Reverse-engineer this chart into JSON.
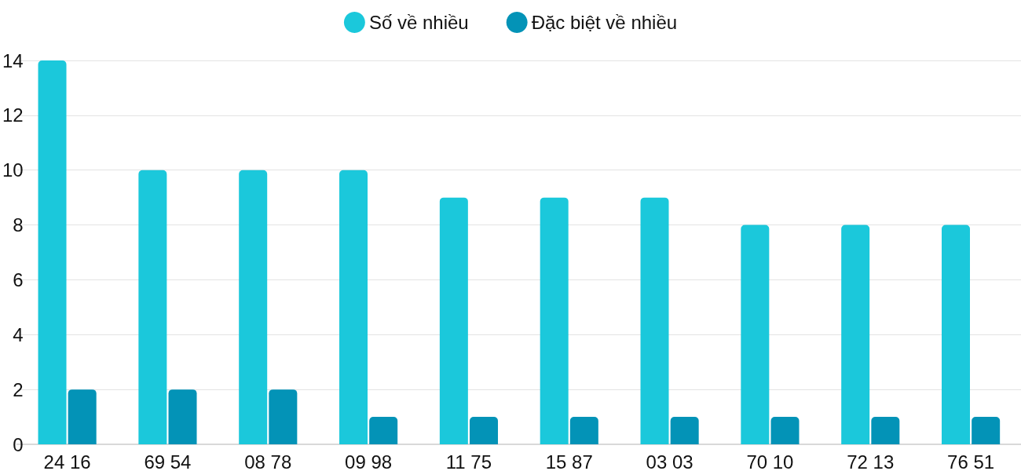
{
  "chart_data": {
    "type": "bar",
    "categories": [
      "24 16",
      "69 54",
      "08 78",
      "09 98",
      "11 75",
      "15 87",
      "03 03",
      "70 10",
      "72 13",
      "76 51"
    ],
    "series": [
      {
        "name": "Số về nhiều",
        "color": "#1bc8db",
        "values": [
          14,
          10,
          10,
          10,
          9,
          9,
          9,
          8,
          8,
          8
        ]
      },
      {
        "name": "Đặc biệt về nhiều",
        "color": "#0393b7",
        "values": [
          2,
          2,
          2,
          1,
          1,
          1,
          1,
          1,
          1,
          1
        ]
      }
    ],
    "ylim": [
      0,
      14
    ],
    "yticks": [
      0,
      2,
      4,
      6,
      8,
      10,
      12,
      14
    ],
    "grid": "y",
    "legend": "top"
  }
}
